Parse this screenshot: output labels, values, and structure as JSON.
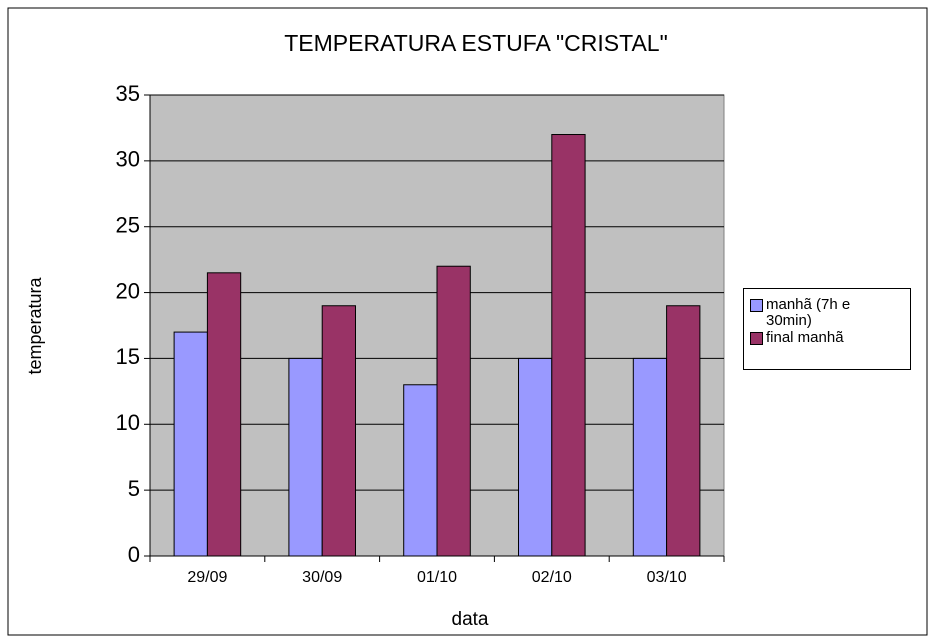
{
  "chart_data": {
    "type": "bar",
    "title": "TEMPERATURA ESTUFA \"CRISTAL\"",
    "x_label": "data",
    "y_label": "temperatura",
    "categories": [
      "29/09",
      "30/09",
      "01/10",
      "02/10",
      "03/10"
    ],
    "series": [
      {
        "name": "manhã (7h e 30min)",
        "color": "#9999ff",
        "values": [
          17,
          15,
          13,
          15,
          15
        ]
      },
      {
        "name": "final manhã",
        "color": "#993366",
        "values": [
          21.5,
          19,
          22,
          32,
          19
        ]
      }
    ],
    "ylim": [
      0,
      35
    ],
    "yticks": [
      0,
      5,
      10,
      15,
      20,
      25,
      30,
      35
    ],
    "grid": true,
    "plot_background": "#c0c0c0",
    "legend": "right"
  }
}
